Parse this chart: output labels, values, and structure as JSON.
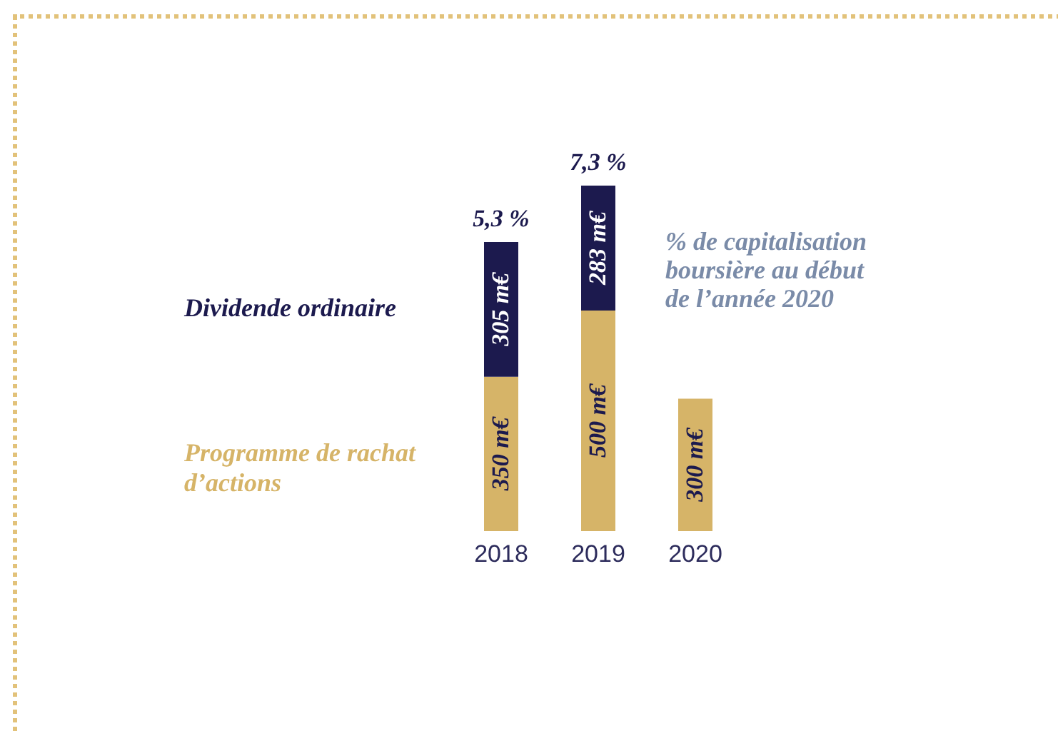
{
  "chart_data": {
    "type": "bar",
    "stacked": true,
    "categories": [
      "2018",
      "2019",
      "2020"
    ],
    "series": [
      {
        "name": "Programme de rachat d’actions",
        "color": "#d6b468",
        "values": [
          350,
          500,
          300
        ],
        "value_labels": [
          "350 m€",
          "500 m€",
          "300 m€"
        ]
      },
      {
        "name": "Dividende ordinaire",
        "color": "#1c1a4e",
        "values": [
          305,
          283,
          null
        ],
        "value_labels": [
          "305 m€",
          "283 m€",
          null
        ]
      }
    ],
    "annotations": [
      {
        "text": "5,3 %",
        "x": "2018",
        "y": 655
      },
      {
        "text": "7,3 %",
        "x": "2019",
        "y": 783
      },
      "% de capitalisation boursière au début de l’année 2020"
    ],
    "legend": "left",
    "tick_labels": "x"
  }
}
